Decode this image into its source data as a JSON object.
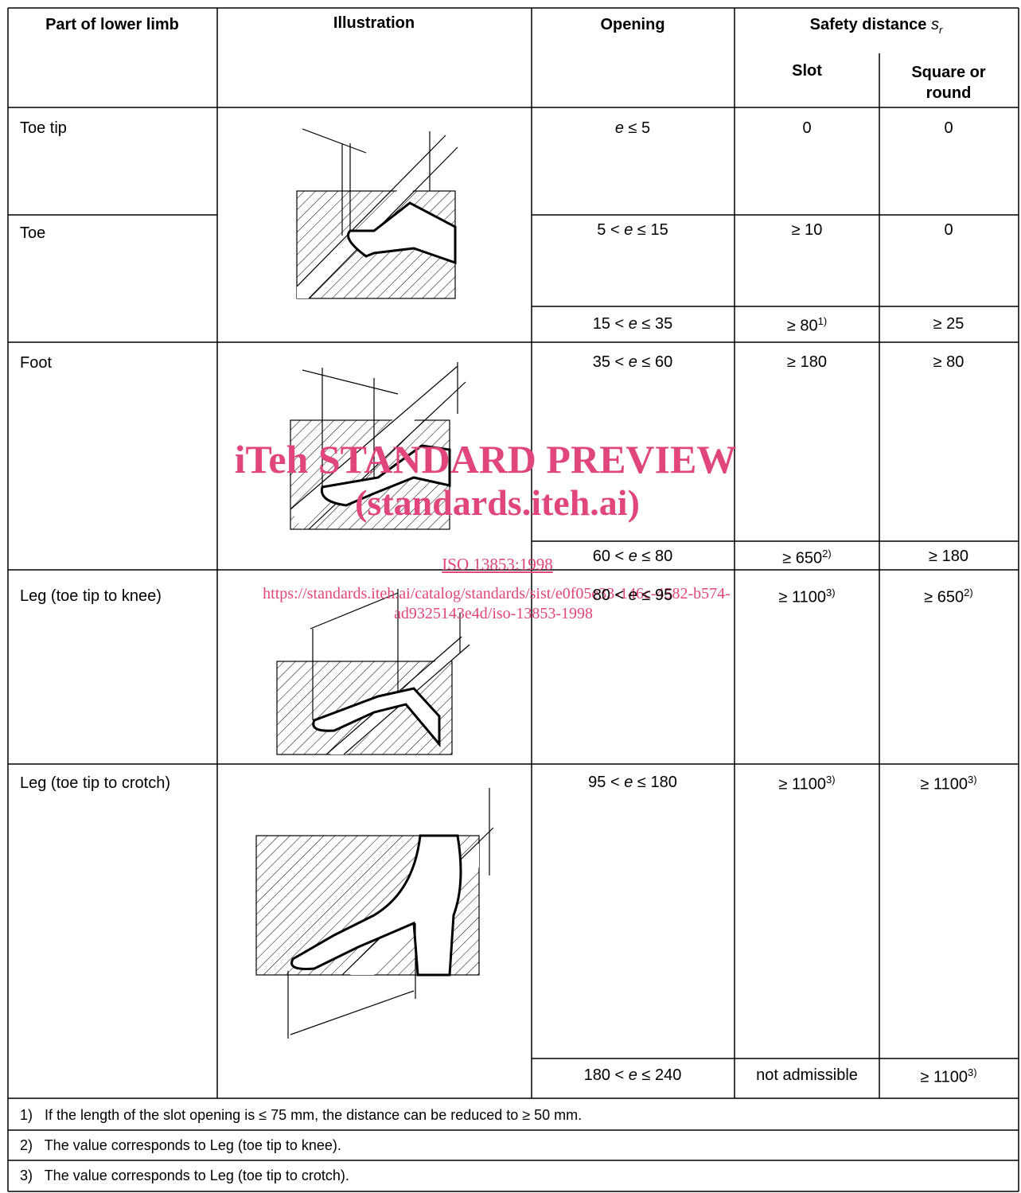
{
  "header": {
    "part": "Part of lower limb",
    "illustration": "Illustration",
    "opening": "Opening",
    "safety_distance": "Safety distance",
    "safety_symbol": "s",
    "safety_subscript": "r",
    "slot": "Slot",
    "square": "Square or round"
  },
  "parts": [
    "Toe tip",
    "Toe",
    "Foot",
    "Leg (toe tip to knee)",
    "Leg (toe tip to crotch)"
  ],
  "rows": [
    {
      "opening": {
        "variable": "e",
        "upper": "≤ 5"
      },
      "slot": {
        "text": "0"
      },
      "square": {
        "text": "0"
      }
    },
    {
      "opening": {
        "lower": "5 <",
        "variable": "e",
        "upper": "≤ 15"
      },
      "slot": {
        "text": "≥ 10"
      },
      "square": {
        "text": "0"
      }
    },
    {
      "opening": {
        "lower": "15 <",
        "variable": "e",
        "upper": "≤ 35"
      },
      "slot": {
        "text": "≥ 80",
        "note": "1)"
      },
      "square": {
        "text": "≥ 25"
      }
    },
    {
      "opening": {
        "lower": "35 <",
        "variable": "e",
        "upper": "≤ 60"
      },
      "slot": {
        "text": "≥ 180"
      },
      "square": {
        "text": "≥ 80"
      }
    },
    {
      "opening": {
        "lower": "60 <",
        "variable": "e",
        "upper": "≤ 80"
      },
      "slot": {
        "text": "≥ 650",
        "note": "2)"
      },
      "square": {
        "text": "≥ 180"
      }
    },
    {
      "opening": {
        "lower": "80 <",
        "variable": "e",
        "upper": "≤ 95"
      },
      "slot": {
        "text": "≥ 1100",
        "note": "3)"
      },
      "square": {
        "text": "≥ 650",
        "note": "2)"
      }
    },
    {
      "opening": {
        "lower": "95 <",
        "variable": "e",
        "upper": "≤ 180"
      },
      "slot": {
        "text": "≥ 1100",
        "note": "3)"
      },
      "square": {
        "text": "≥ 1100",
        "note": "3)"
      }
    },
    {
      "opening": {
        "lower": "180 <",
        "variable": "e",
        "upper": "≤ 240"
      },
      "slot": {
        "text": "not admissible"
      },
      "square": {
        "text": "≥ 1100",
        "note": "3)"
      }
    }
  ],
  "footnotes": [
    {
      "marker": "1)",
      "text": "If the length of the slot opening is ≤ 75 mm, the distance can be reduced to ≥ 50 mm."
    },
    {
      "marker": "2)",
      "text": "The value corresponds to Leg (toe tip to knee)."
    },
    {
      "marker": "3)",
      "text": "The value corresponds to Leg (toe tip to crotch)."
    }
  ],
  "watermark": {
    "line1": "iTeh STANDARD PREVIEW",
    "line2": "(standards.iteh.ai)",
    "link": "ISO 13853:1998",
    "url1": "https://standards.iteh.ai/catalog/standards/sist/e0f05e33-146c-4582-b574-",
    "url2": "ad9325143e4d/iso-13853-1998"
  }
}
